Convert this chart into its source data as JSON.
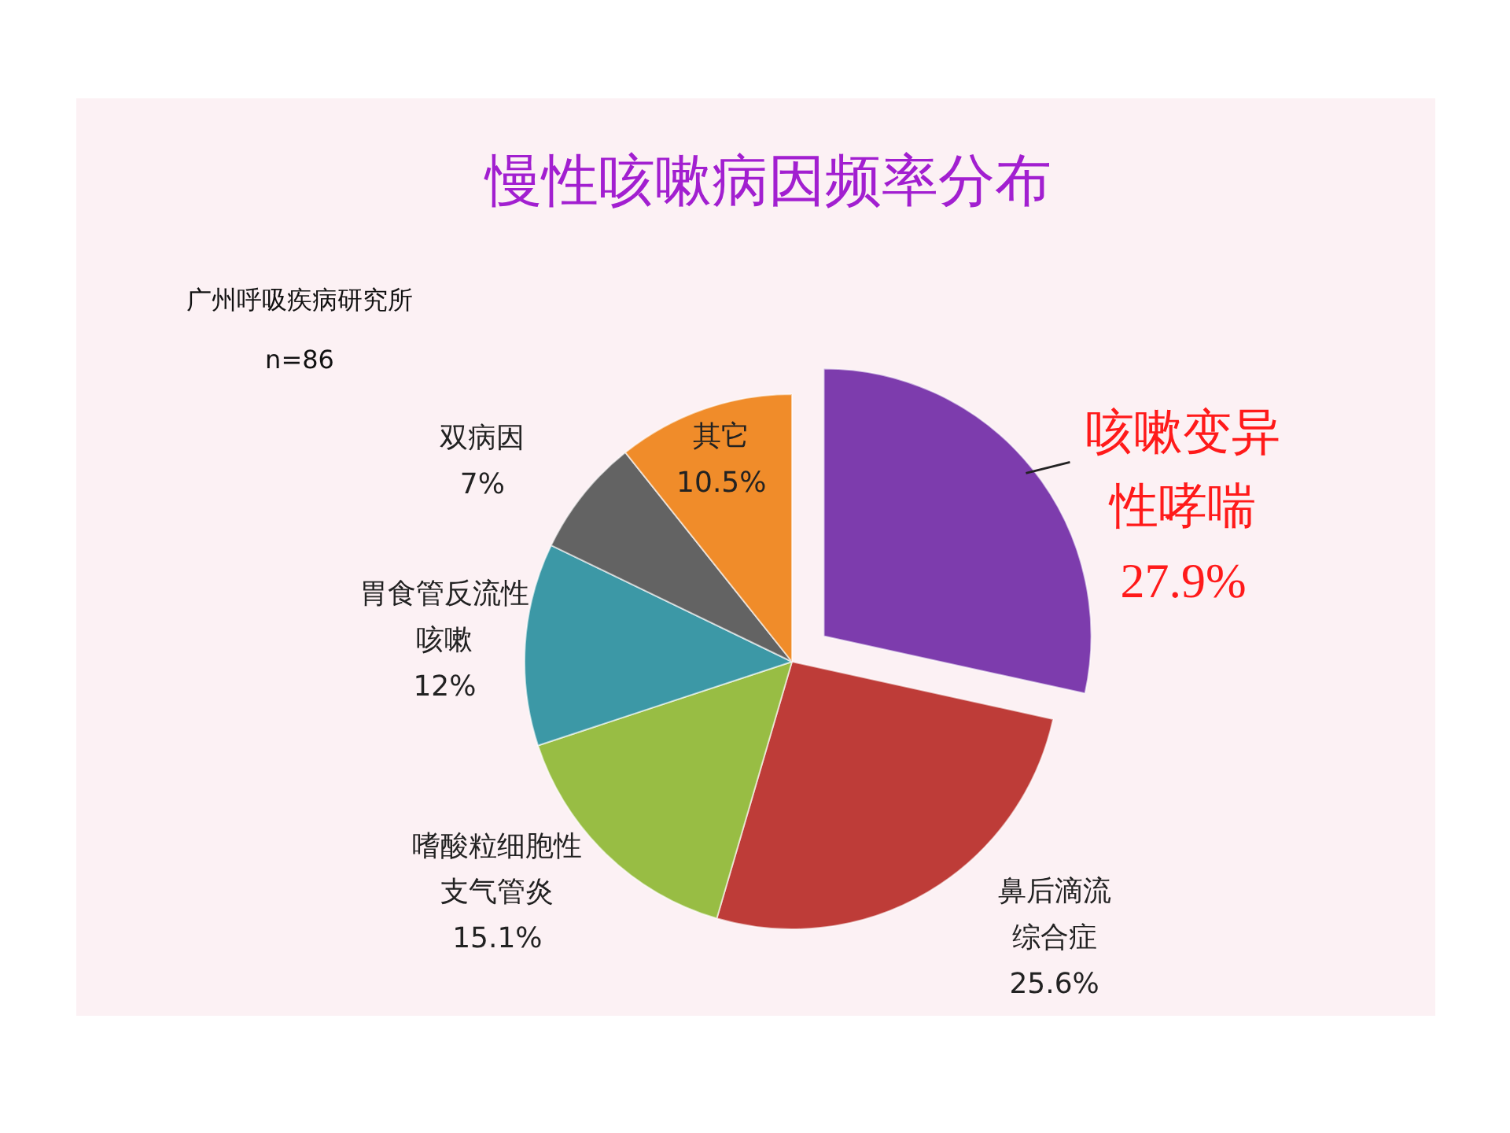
{
  "chart_data": {
    "type": "pie",
    "title": "慢性咳嗽病因频率分布",
    "categories": [
      "咳嗽变异性哮喘",
      "鼻后滴流综合症",
      "嗜酸粒细胞性支气管炎",
      "胃食管反流性咳嗽",
      "双病因",
      "其它"
    ],
    "values": [
      27.9,
      25.6,
      15.1,
      12,
      7,
      10.5
    ],
    "value_labels": [
      "27.9%",
      "25.6%",
      "15.1%",
      "12%",
      "7%",
      "10.5%"
    ],
    "colors": [
      "#7d3cad",
      "#be3c38",
      "#98bd44",
      "#3c98a6",
      "#636363",
      "#f08c2a"
    ],
    "annotations": [
      "广州呼吸疾病研究所",
      "n=86"
    ]
  }
}
